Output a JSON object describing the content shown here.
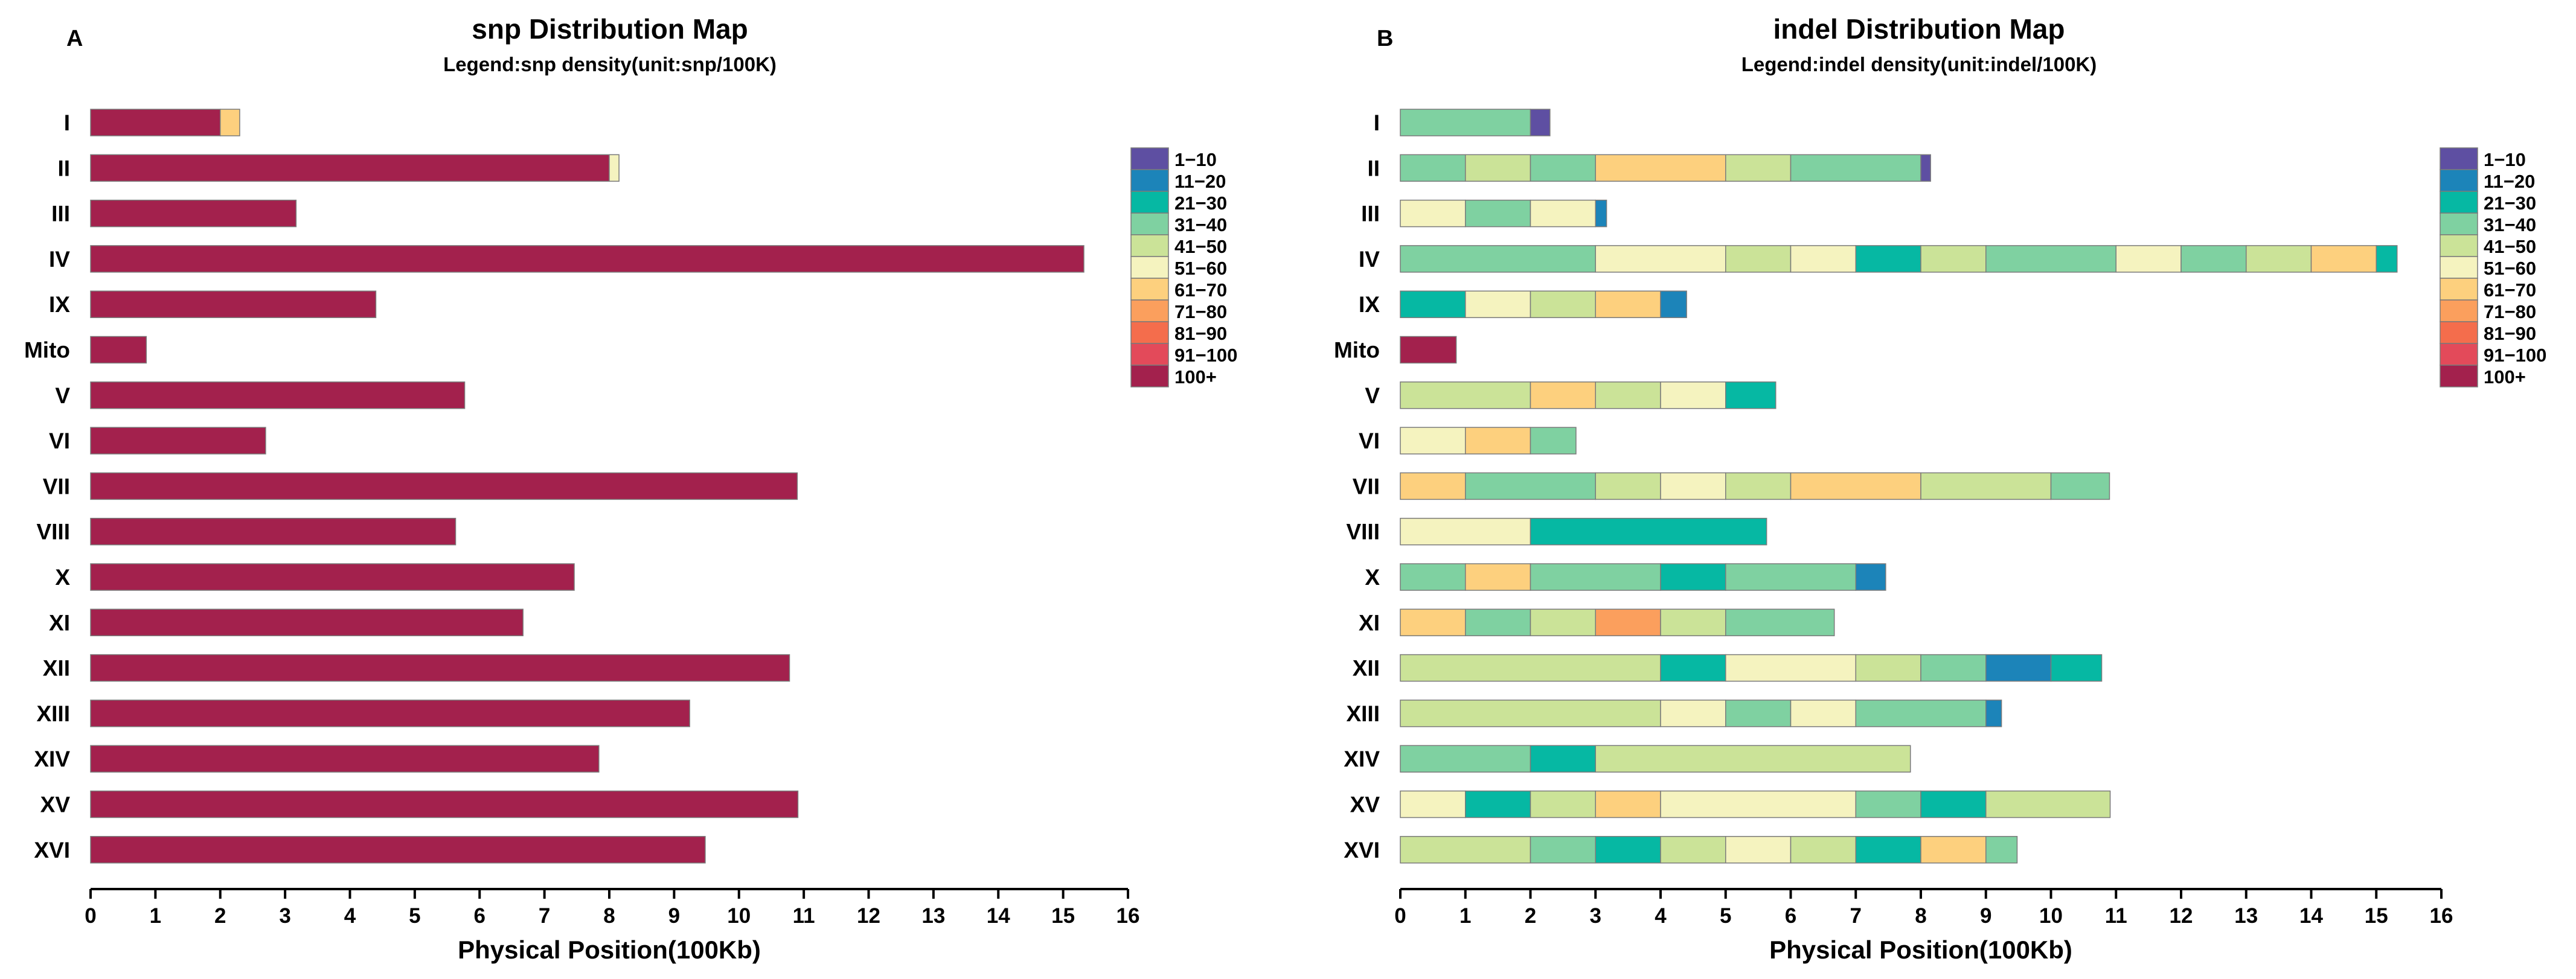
{
  "chart_data": [
    {
      "type": "bar",
      "panel_label": "A",
      "title": "snp Distribution Map",
      "subtitle": "Legend:snp density(unit:snp/100K)",
      "xlabel": "Physical Position(100Kb)",
      "ylabel": "",
      "xlim": [
        0,
        16
      ],
      "xticks": [
        "0",
        "1",
        "2",
        "3",
        "4",
        "5",
        "6",
        "7",
        "8",
        "9",
        "10",
        "11",
        "12",
        "13",
        "14",
        "15",
        "16"
      ],
      "chromosomes": [
        {
          "name": "I",
          "segments": [
            {
              "cat": "100+",
              "start": 0,
              "end": 2
            },
            {
              "cat": "61−70",
              "start": 2,
              "end": 2.3
            }
          ]
        },
        {
          "name": "II",
          "segments": [
            {
              "cat": "100+",
              "start": 0,
              "end": 8
            },
            {
              "cat": "51−60",
              "start": 8,
              "end": 8.15
            }
          ]
        },
        {
          "name": "III",
          "segments": [
            {
              "cat": "100+",
              "start": 0,
              "end": 3.17
            }
          ]
        },
        {
          "name": "IV",
          "segments": [
            {
              "cat": "100+",
              "start": 0,
              "end": 15.32
            }
          ]
        },
        {
          "name": "IX",
          "segments": [
            {
              "cat": "100+",
              "start": 0,
              "end": 4.4
            }
          ]
        },
        {
          "name": "Mito",
          "segments": [
            {
              "cat": "100+",
              "start": 0,
              "end": 0.86
            }
          ]
        },
        {
          "name": "V",
          "segments": [
            {
              "cat": "100+",
              "start": 0,
              "end": 5.77
            }
          ]
        },
        {
          "name": "VI",
          "segments": [
            {
              "cat": "100+",
              "start": 0,
              "end": 2.7
            }
          ]
        },
        {
          "name": "VII",
          "segments": [
            {
              "cat": "100+",
              "start": 0,
              "end": 10.9
            }
          ]
        },
        {
          "name": "VIII",
          "segments": [
            {
              "cat": "100+",
              "start": 0,
              "end": 5.63
            }
          ]
        },
        {
          "name": "X",
          "segments": [
            {
              "cat": "100+",
              "start": 0,
              "end": 7.46
            }
          ]
        },
        {
          "name": "XI",
          "segments": [
            {
              "cat": "100+",
              "start": 0,
              "end": 6.67
            }
          ]
        },
        {
          "name": "XII",
          "segments": [
            {
              "cat": "100+",
              "start": 0,
              "end": 10.78
            }
          ]
        },
        {
          "name": "XIII",
          "segments": [
            {
              "cat": "100+",
              "start": 0,
              "end": 9.24
            }
          ]
        },
        {
          "name": "XIV",
          "segments": [
            {
              "cat": "100+",
              "start": 0,
              "end": 7.84
            }
          ]
        },
        {
          "name": "XV",
          "segments": [
            {
              "cat": "100+",
              "start": 0,
              "end": 10.91
            }
          ]
        },
        {
          "name": "XVI",
          "segments": [
            {
              "cat": "100+",
              "start": 0,
              "end": 9.48
            }
          ]
        }
      ]
    },
    {
      "type": "bar",
      "panel_label": "B",
      "title": "indel Distribution Map",
      "subtitle": "Legend:indel density(unit:indel/100K)",
      "xlabel": "Physical Position(100Kb)",
      "ylabel": "",
      "xlim": [
        0,
        16
      ],
      "xticks": [
        "0",
        "1",
        "2",
        "3",
        "4",
        "5",
        "6",
        "7",
        "8",
        "9",
        "10",
        "11",
        "12",
        "13",
        "14",
        "15",
        "16"
      ],
      "chromosomes": [
        {
          "name": "I",
          "segments": [
            {
              "cat": "31−40",
              "start": 0,
              "end": 2
            },
            {
              "cat": "1−10",
              "start": 2,
              "end": 2.3
            }
          ]
        },
        {
          "name": "II",
          "segments": [
            {
              "cat": "31−40",
              "start": 0,
              "end": 1
            },
            {
              "cat": "41−50",
              "start": 1,
              "end": 2
            },
            {
              "cat": "31−40",
              "start": 2,
              "end": 3
            },
            {
              "cat": "61−70",
              "start": 3,
              "end": 5
            },
            {
              "cat": "41−50",
              "start": 5,
              "end": 6
            },
            {
              "cat": "31−40",
              "start": 6,
              "end": 8
            },
            {
              "cat": "1−10",
              "start": 8,
              "end": 8.15
            }
          ]
        },
        {
          "name": "III",
          "segments": [
            {
              "cat": "51−60",
              "start": 0,
              "end": 1
            },
            {
              "cat": "31−40",
              "start": 1,
              "end": 2
            },
            {
              "cat": "51−60",
              "start": 2,
              "end": 3
            },
            {
              "cat": "11−20",
              "start": 3,
              "end": 3.17
            }
          ]
        },
        {
          "name": "IV",
          "segments": [
            {
              "cat": "31−40",
              "start": 0,
              "end": 3
            },
            {
              "cat": "51−60",
              "start": 3,
              "end": 5
            },
            {
              "cat": "41−50",
              "start": 5,
              "end": 6
            },
            {
              "cat": "51−60",
              "start": 6,
              "end": 7
            },
            {
              "cat": "21−30",
              "start": 7,
              "end": 8
            },
            {
              "cat": "41−50",
              "start": 8,
              "end": 9
            },
            {
              "cat": "31−40",
              "start": 9,
              "end": 11
            },
            {
              "cat": "51−60",
              "start": 11,
              "end": 12
            },
            {
              "cat": "31−40",
              "start": 12,
              "end": 13
            },
            {
              "cat": "41−50",
              "start": 13,
              "end": 14
            },
            {
              "cat": "61−70",
              "start": 14,
              "end": 15
            },
            {
              "cat": "21−30",
              "start": 15,
              "end": 15.32
            }
          ]
        },
        {
          "name": "IX",
          "segments": [
            {
              "cat": "21−30",
              "start": 0,
              "end": 1
            },
            {
              "cat": "51−60",
              "start": 1,
              "end": 2
            },
            {
              "cat": "41−50",
              "start": 2,
              "end": 3
            },
            {
              "cat": "61−70",
              "start": 3,
              "end": 4
            },
            {
              "cat": "11−20",
              "start": 4,
              "end": 4.4
            }
          ]
        },
        {
          "name": "Mito",
          "segments": [
            {
              "cat": "100+",
              "start": 0,
              "end": 0.86
            }
          ]
        },
        {
          "name": "V",
          "segments": [
            {
              "cat": "41−50",
              "start": 0,
              "end": 2
            },
            {
              "cat": "61−70",
              "start": 2,
              "end": 3
            },
            {
              "cat": "41−50",
              "start": 3,
              "end": 4
            },
            {
              "cat": "51−60",
              "start": 4,
              "end": 5
            },
            {
              "cat": "21−30",
              "start": 5,
              "end": 5.77
            }
          ]
        },
        {
          "name": "VI",
          "segments": [
            {
              "cat": "51−60",
              "start": 0,
              "end": 1
            },
            {
              "cat": "61−70",
              "start": 1,
              "end": 2
            },
            {
              "cat": "31−40",
              "start": 2,
              "end": 2.7
            }
          ]
        },
        {
          "name": "VII",
          "segments": [
            {
              "cat": "61−70",
              "start": 0,
              "end": 1
            },
            {
              "cat": "31−40",
              "start": 1,
              "end": 3
            },
            {
              "cat": "41−50",
              "start": 3,
              "end": 4
            },
            {
              "cat": "51−60",
              "start": 4,
              "end": 5
            },
            {
              "cat": "41−50",
              "start": 5,
              "end": 6
            },
            {
              "cat": "61−70",
              "start": 6,
              "end": 8
            },
            {
              "cat": "41−50",
              "start": 8,
              "end": 10
            },
            {
              "cat": "31−40",
              "start": 10,
              "end": 10.9
            }
          ]
        },
        {
          "name": "VIII",
          "segments": [
            {
              "cat": "51−60",
              "start": 0,
              "end": 2
            },
            {
              "cat": "21−30",
              "start": 2,
              "end": 5.63
            }
          ]
        },
        {
          "name": "X",
          "segments": [
            {
              "cat": "31−40",
              "start": 0,
              "end": 1
            },
            {
              "cat": "61−70",
              "start": 1,
              "end": 2
            },
            {
              "cat": "31−40",
              "start": 2,
              "end": 4
            },
            {
              "cat": "21−30",
              "start": 4,
              "end": 5
            },
            {
              "cat": "31−40",
              "start": 5,
              "end": 7
            },
            {
              "cat": "11−20",
              "start": 7,
              "end": 7.46
            }
          ]
        },
        {
          "name": "XI",
          "segments": [
            {
              "cat": "61−70",
              "start": 0,
              "end": 1
            },
            {
              "cat": "31−40",
              "start": 1,
              "end": 2
            },
            {
              "cat": "41−50",
              "start": 2,
              "end": 3
            },
            {
              "cat": "71−80",
              "start": 3,
              "end": 4
            },
            {
              "cat": "41−50",
              "start": 4,
              "end": 5
            },
            {
              "cat": "31−40",
              "start": 5,
              "end": 6.67
            }
          ]
        },
        {
          "name": "XII",
          "segments": [
            {
              "cat": "41−50",
              "start": 0,
              "end": 4
            },
            {
              "cat": "21−30",
              "start": 4,
              "end": 5
            },
            {
              "cat": "51−60",
              "start": 5,
              "end": 7
            },
            {
              "cat": "41−50",
              "start": 7,
              "end": 8
            },
            {
              "cat": "31−40",
              "start": 8,
              "end": 9
            },
            {
              "cat": "11−20",
              "start": 9,
              "end": 10
            },
            {
              "cat": "21−30",
              "start": 10,
              "end": 10.78
            }
          ]
        },
        {
          "name": "XIII",
          "segments": [
            {
              "cat": "41−50",
              "start": 0,
              "end": 4
            },
            {
              "cat": "51−60",
              "start": 4,
              "end": 5
            },
            {
              "cat": "31−40",
              "start": 5,
              "end": 6
            },
            {
              "cat": "51−60",
              "start": 6,
              "end": 7
            },
            {
              "cat": "31−40",
              "start": 7,
              "end": 9
            },
            {
              "cat": "11−20",
              "start": 9,
              "end": 9.24
            }
          ]
        },
        {
          "name": "XIV",
          "segments": [
            {
              "cat": "31−40",
              "start": 0,
              "end": 2
            },
            {
              "cat": "21−30",
              "start": 2,
              "end": 3
            },
            {
              "cat": "41−50",
              "start": 3,
              "end": 7.84
            }
          ]
        },
        {
          "name": "XV",
          "segments": [
            {
              "cat": "51−60",
              "start": 0,
              "end": 1
            },
            {
              "cat": "21−30",
              "start": 1,
              "end": 2
            },
            {
              "cat": "41−50",
              "start": 2,
              "end": 3
            },
            {
              "cat": "61−70",
              "start": 3,
              "end": 4
            },
            {
              "cat": "51−60",
              "start": 4,
              "end": 7
            },
            {
              "cat": "31−40",
              "start": 7,
              "end": 8
            },
            {
              "cat": "21−30",
              "start": 8,
              "end": 9
            },
            {
              "cat": "41−50",
              "start": 9,
              "end": 10.91
            }
          ]
        },
        {
          "name": "XVI",
          "segments": [
            {
              "cat": "41−50",
              "start": 0,
              "end": 2
            },
            {
              "cat": "31−40",
              "start": 2,
              "end": 3
            },
            {
              "cat": "21−30",
              "start": 3,
              "end": 4
            },
            {
              "cat": "41−50",
              "start": 4,
              "end": 5
            },
            {
              "cat": "51−60",
              "start": 5,
              "end": 6
            },
            {
              "cat": "41−50",
              "start": 6,
              "end": 7
            },
            {
              "cat": "21−30",
              "start": 7,
              "end": 8
            },
            {
              "cat": "61−70",
              "start": 8,
              "end": 9
            },
            {
              "cat": "31−40",
              "start": 9,
              "end": 9.48
            }
          ]
        }
      ]
    }
  ],
  "legend": [
    {
      "label": "1−10",
      "color": "#5e4fa2"
    },
    {
      "label": "11−20",
      "color": "#1c84b9"
    },
    {
      "label": "21−30",
      "color": "#06b8a3"
    },
    {
      "label": "31−40",
      "color": "#7fd1a1"
    },
    {
      "label": "41−50",
      "color": "#cbe398"
    },
    {
      "label": "51−60",
      "color": "#f5f3bf"
    },
    {
      "label": "61−70",
      "color": "#fdd07e"
    },
    {
      "label": "71−80",
      "color": "#fb9f5d"
    },
    {
      "label": "81−90",
      "color": "#f46d4c"
    },
    {
      "label": "91−100",
      "color": "#e34a5a"
    },
    {
      "label": "100+",
      "color": "#a3214d"
    }
  ]
}
